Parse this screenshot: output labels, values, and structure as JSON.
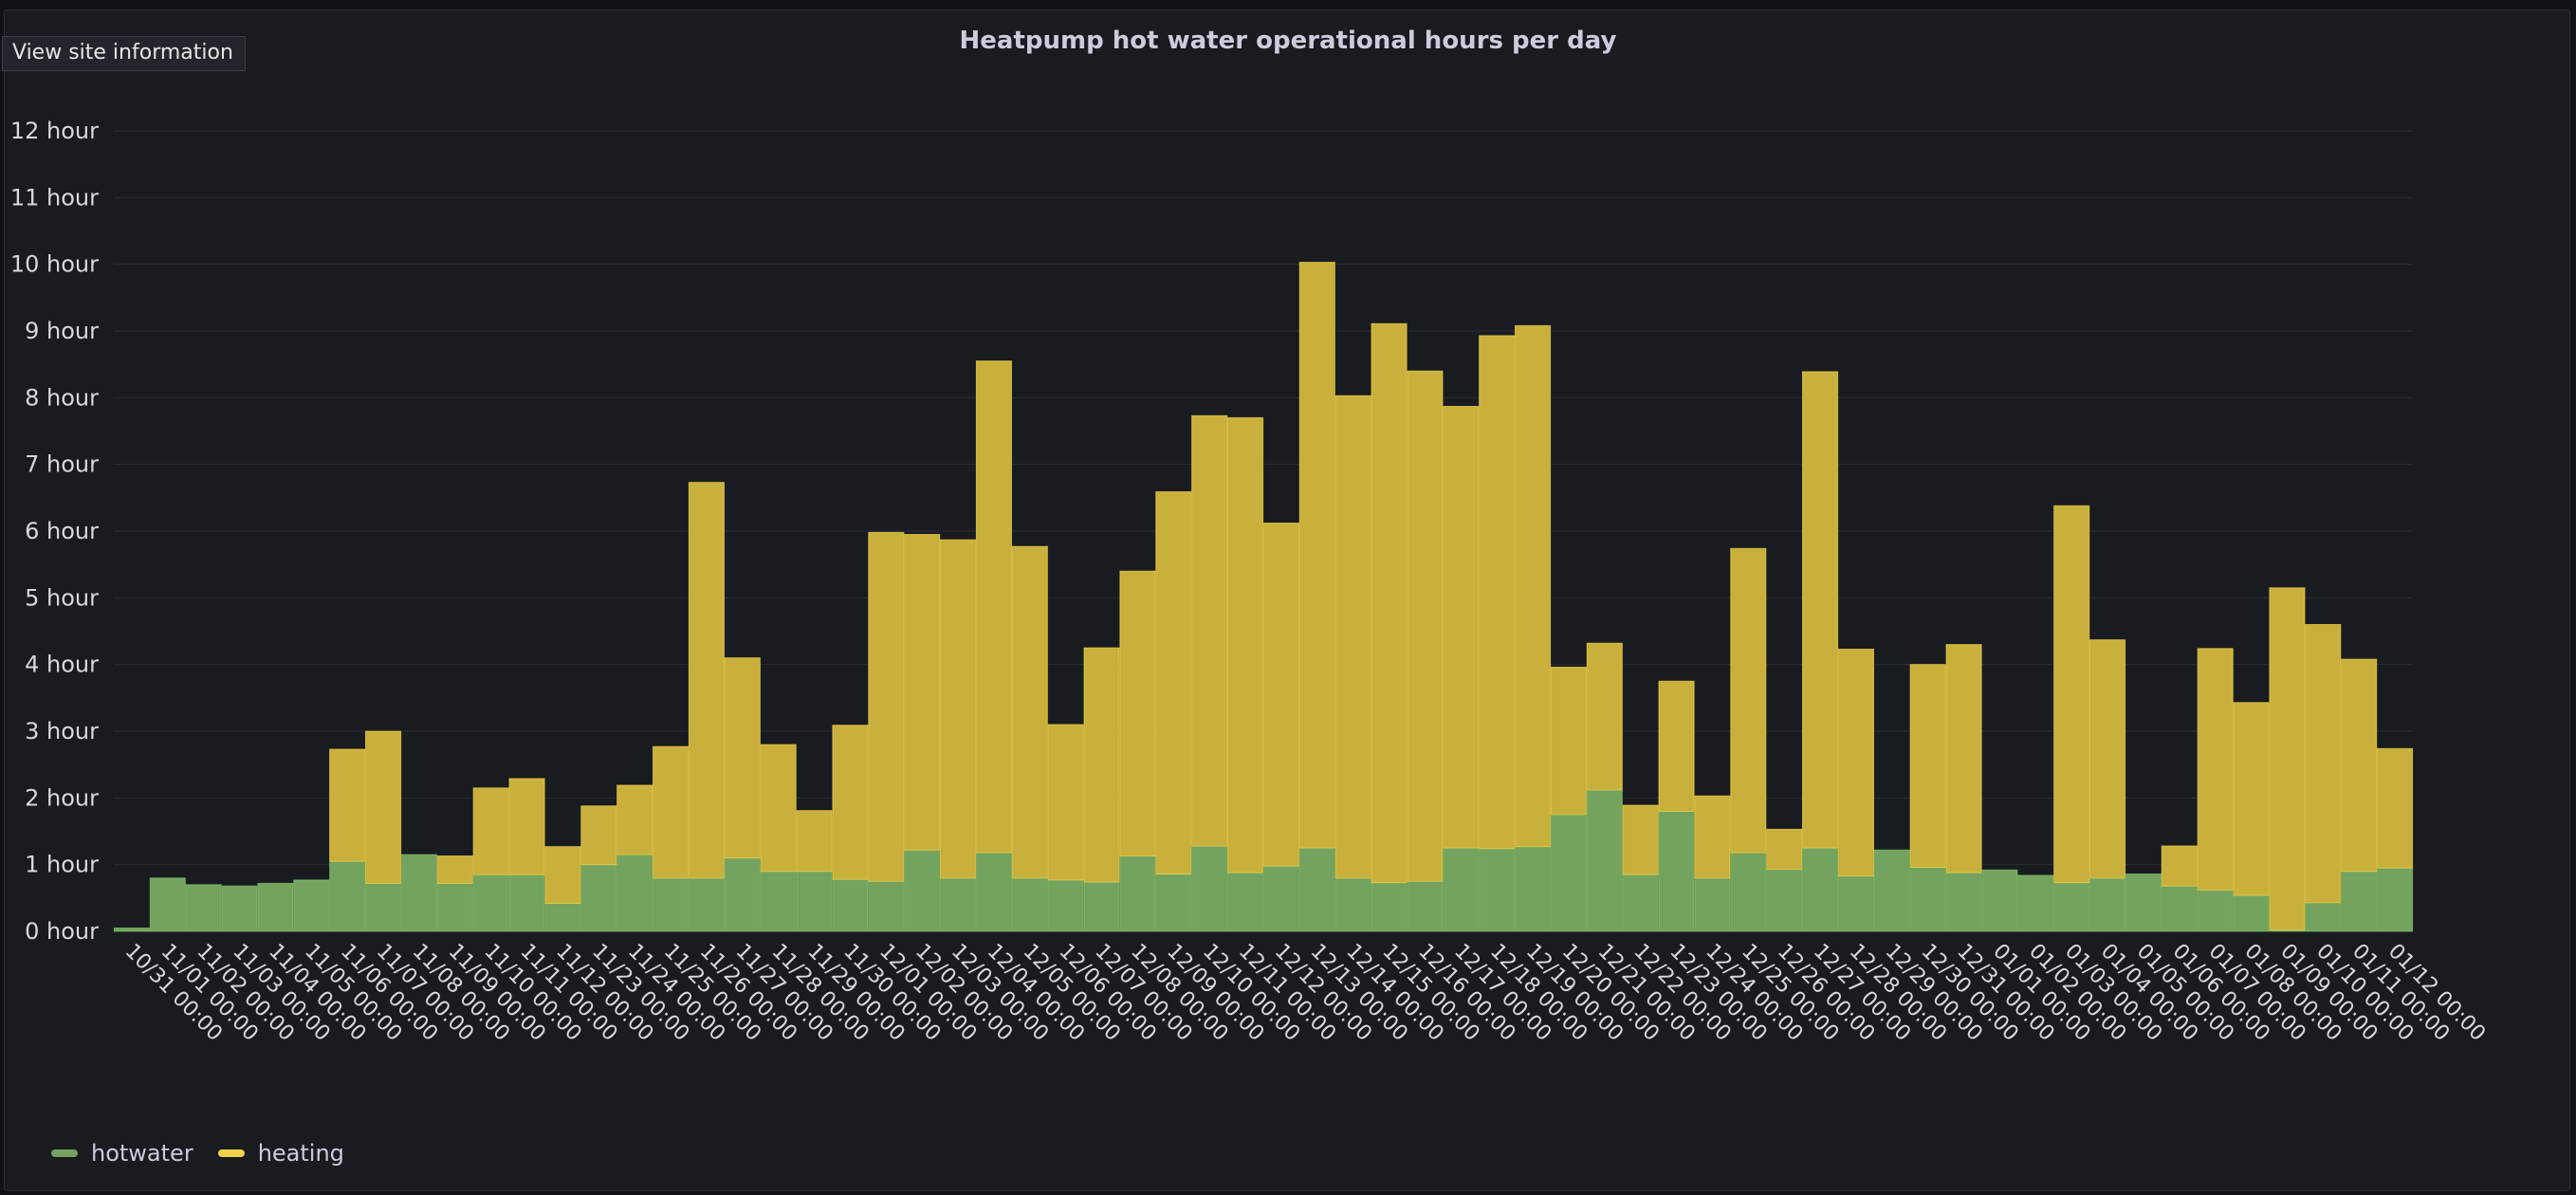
{
  "button_label": "View site information",
  "colors": {
    "hotwater": "#73a35f",
    "heating": "#c9b03c",
    "heating_stroke": "#f2d34a",
    "hotwater_stroke": "#8ccf6c",
    "grid": "#2a2d33",
    "text": "#d8d9da"
  },
  "chart_data": {
    "type": "bar",
    "stacked": true,
    "title": "Heatpump hot water operational hours per day",
    "xlabel": "",
    "ylabel": "",
    "ylim": [
      0,
      12
    ],
    "yticks": [
      "0 hour",
      "1 hour",
      "2 hour",
      "3 hour",
      "4 hour",
      "5 hour",
      "6 hour",
      "7 hour",
      "8 hour",
      "9 hour",
      "10 hour",
      "11 hour",
      "12 hour"
    ],
    "categories": [
      "10/31 00:00",
      "11/01 00:00",
      "11/02 00:00",
      "11/03 00:00",
      "11/04 00:00",
      "11/05 00:00",
      "11/06 00:00",
      "11/07 00:00",
      "11/08 00:00",
      "11/09 00:00",
      "11/10 00:00",
      "11/11 00:00",
      "11/12 00:00",
      "11/23 00:00",
      "11/24 00:00",
      "11/25 00:00",
      "11/26 00:00",
      "11/27 00:00",
      "11/28 00:00",
      "11/29 00:00",
      "11/30 00:00",
      "12/01 00:00",
      "12/02 00:00",
      "12/03 00:00",
      "12/04 00:00",
      "12/05 00:00",
      "12/06 00:00",
      "12/07 00:00",
      "12/08 00:00",
      "12/09 00:00",
      "12/10 00:00",
      "12/11 00:00",
      "12/12 00:00",
      "12/13 00:00",
      "12/14 00:00",
      "12/15 00:00",
      "12/16 00:00",
      "12/17 00:00",
      "12/18 00:00",
      "12/19 00:00",
      "12/20 00:00",
      "12/21 00:00",
      "12/22 00:00",
      "12/23 00:00",
      "12/24 00:00",
      "12/25 00:00",
      "12/26 00:00",
      "12/27 00:00",
      "12/28 00:00",
      "12/29 00:00",
      "12/30 00:00",
      "12/31 00:00",
      "01/01 00:00",
      "01/02 00:00",
      "01/03 00:00",
      "01/04 00:00",
      "01/05 00:00",
      "01/06 00:00",
      "01/07 00:00",
      "01/08 00:00",
      "01/09 00:00",
      "01/10 00:00",
      "01/11 00:00",
      "01/12 00:00"
    ],
    "series": [
      {
        "name": "hotwater",
        "values": [
          0.05,
          0.8,
          0.7,
          0.68,
          0.72,
          0.77,
          1.05,
          0.72,
          1.15,
          0.72,
          0.85,
          0.85,
          0.42,
          1.0,
          1.15,
          0.8,
          0.8,
          1.1,
          0.9,
          0.9,
          0.78,
          0.75,
          1.22,
          0.8,
          1.18,
          0.8,
          0.77,
          0.74,
          1.13,
          0.86,
          1.28,
          0.88,
          0.98,
          1.25,
          0.8,
          0.73,
          0.75,
          1.25,
          1.24,
          1.27,
          1.75,
          2.12,
          0.85,
          1.8,
          0.8,
          1.18,
          0.93,
          1.25,
          0.83,
          1.22,
          0.96,
          0.88,
          0.92,
          0.84,
          0.73,
          0.8,
          0.86,
          0.68,
          0.62,
          0.54,
          0.02,
          0.43,
          0.9,
          0.95
        ]
      },
      {
        "name": "heating",
        "values": [
          0,
          0,
          0,
          0,
          0,
          0,
          1.68,
          2.28,
          0,
          0.41,
          1.3,
          1.44,
          0.85,
          0.88,
          1.04,
          1.97,
          5.93,
          3.0,
          1.9,
          0.91,
          2.31,
          5.23,
          4.73,
          5.07,
          7.37,
          4.97,
          2.33,
          3.51,
          4.27,
          5.73,
          6.45,
          6.82,
          5.14,
          8.78,
          7.23,
          8.38,
          7.65,
          6.62,
          7.69,
          7.81,
          2.21,
          2.2,
          1.04,
          1.95,
          1.23,
          4.56,
          0.6,
          7.14,
          3.4,
          0,
          3.04,
          3.42,
          0,
          0,
          5.65,
          3.57,
          0,
          0.6,
          3.62,
          2.89,
          5.13,
          4.17,
          3.18,
          1.79
        ]
      }
    ],
    "legend": {
      "position": "bottom-left",
      "entries": [
        "hotwater",
        "heating"
      ]
    },
    "grid": true
  }
}
